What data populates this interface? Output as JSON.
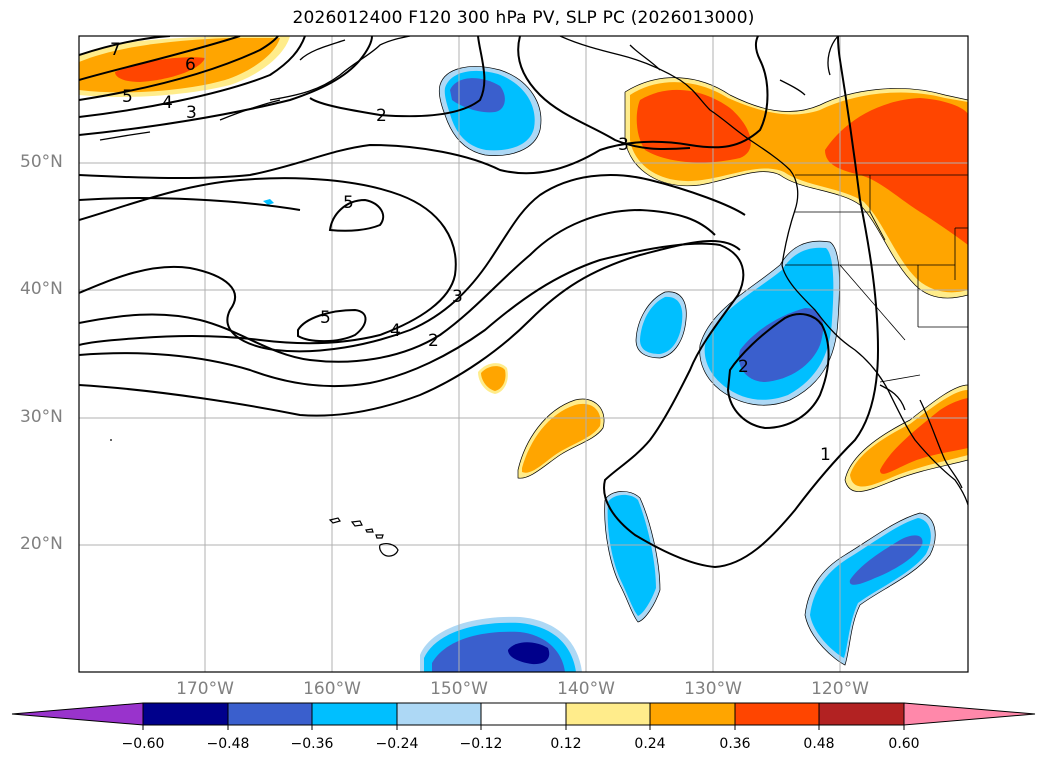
{
  "title": "2026012400 F120 300 hPa PV, SLP PC (2026013000)",
  "lat_labels": [
    "50°N",
    "40°N",
    "30°N",
    "20°N"
  ],
  "lon_labels": [
    "170°W",
    "160°W",
    "150°W",
    "140°W",
    "130°W",
    "120°W"
  ],
  "colorbar": {
    "ticks": [
      "−0.60",
      "−0.48",
      "−0.36",
      "−0.24",
      "−0.12",
      "0.12",
      "0.24",
      "0.36",
      "0.48",
      "0.60"
    ],
    "colors": [
      "#9933cc",
      "#00008b",
      "#3a5fcd",
      "#00bfff",
      "#add8f5",
      "#ffffff",
      "#ffec8b",
      "#ffa500",
      "#ff4500",
      "#b22222",
      "#ff88aa"
    ]
  },
  "contour_labels": [
    "7",
    "6",
    "5",
    "4",
    "3",
    "2",
    "3",
    "5",
    "5",
    "4",
    "3",
    "2",
    "2",
    "1"
  ]
}
